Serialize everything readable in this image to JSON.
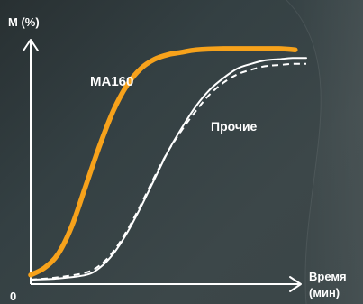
{
  "chart_data": {
    "type": "line",
    "title": "",
    "ylabel": "M (%)",
    "xlabel_line1": "Время",
    "xlabel_line2": "(мин)",
    "origin_label": "0",
    "xlim": [
      0,
      100
    ],
    "ylim": [
      0,
      100
    ],
    "grid": false,
    "series": [
      {
        "name": "MA160",
        "color": "#f7a21b",
        "style": "solid",
        "x": [
          0,
          5,
          10,
          15,
          20,
          25,
          30,
          35,
          40,
          45,
          50,
          55,
          60,
          70,
          80,
          90,
          96
        ],
        "y": [
          2,
          5,
          11,
          23,
          40,
          57,
          72,
          83,
          90,
          94,
          96,
          97,
          98,
          98.5,
          98.5,
          98.5,
          98
        ]
      },
      {
        "name": "Прочие",
        "color": "#ffffff",
        "style": "solid",
        "x": [
          0,
          10,
          20,
          25,
          30,
          35,
          40,
          45,
          50,
          55,
          60,
          65,
          70,
          75,
          80,
          85,
          90,
          95,
          100
        ],
        "y": [
          0,
          0.5,
          2,
          5,
          11,
          20,
          31,
          43,
          55,
          65,
          74,
          81,
          86,
          90,
          92,
          93.5,
          94,
          94.5,
          94.5
        ]
      },
      {
        "name": "",
        "color": "#ffffff",
        "style": "dashed",
        "x": [
          0,
          10,
          20,
          25,
          30,
          35,
          40,
          45,
          50,
          55,
          60,
          65,
          70,
          75,
          80,
          85,
          90,
          95,
          100
        ],
        "y": [
          0,
          1,
          3,
          6,
          12,
          21,
          32,
          44,
          55,
          64,
          72,
          79,
          84,
          87.5,
          89.5,
          91,
          91.5,
          92,
          92
        ]
      }
    ],
    "annotations": [
      {
        "series": "MA160",
        "text": "MA160",
        "color": "#f7a21b"
      },
      {
        "series": "Прочие",
        "text": "Прочие",
        "color": "#ffffff"
      }
    ]
  }
}
